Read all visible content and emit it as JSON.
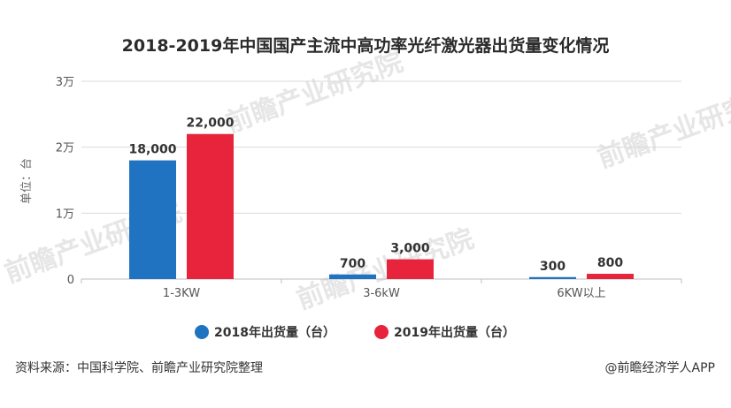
{
  "chart_data": {
    "type": "bar",
    "title": "2018-2019年中国国产主流中高功率光纤激光器出货量变化情况",
    "ylabel": "单位：台",
    "xlabel": "",
    "categories": [
      "1-3KW",
      "3-6kW",
      "6KW以上"
    ],
    "series": [
      {
        "name": "2018年出货量（台）",
        "color": "#1f73c1",
        "values": [
          18000,
          700,
          300
        ],
        "labels": [
          "18,000",
          "700",
          "300"
        ]
      },
      {
        "name": "2019年出货量（台）",
        "color": "#e8243c",
        "values": [
          22000,
          3000,
          800
        ],
        "labels": [
          "22,000",
          "3,000",
          "800"
        ]
      }
    ],
    "ylim": [
      0,
      30000
    ],
    "yticks": [
      0,
      10000,
      20000,
      30000
    ],
    "ytick_labels": [
      "0",
      "1万",
      "2万",
      "3万"
    ],
    "grid": true,
    "legend_position": "bottom"
  },
  "footer": {
    "source": "资料来源：中国科学院、前瞻产业研究院整理",
    "credit": "@前瞻经济学人APP"
  },
  "watermark": {
    "texts": [
      "前瞻产业研究院",
      "前瞻产业研究院",
      "前瞻产业研究院",
      "前瞻产业研究院"
    ]
  }
}
